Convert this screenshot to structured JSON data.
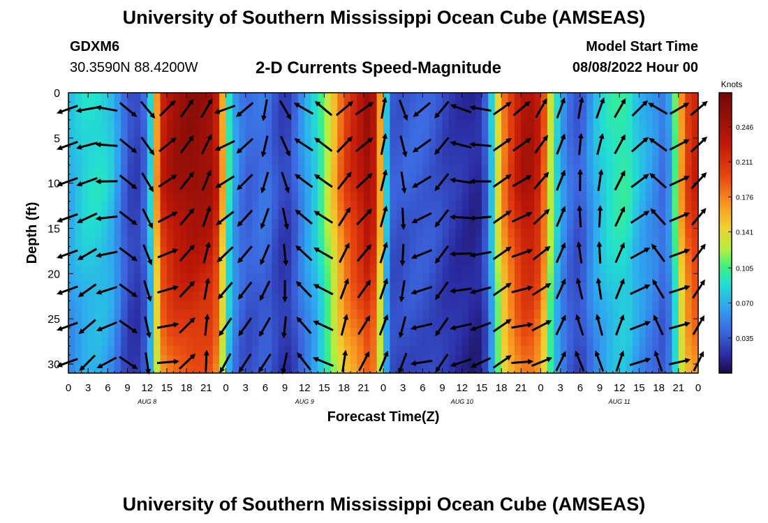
{
  "header": {
    "title_top": "University of Southern Mississippi Ocean Cube (AMSEAS)",
    "title_bottom": "University of Southern Mississippi Ocean Cube (AMSEAS)",
    "station_id": "GDXM6",
    "station_coords": "30.3590N  88.4200W",
    "plot_title": "2-D Currents Speed-Magnitude",
    "model_start_label": "Model Start Time",
    "model_start_value": "08/08/2022 Hour 00"
  },
  "chart_data": {
    "type": "heatmap",
    "title": "2-D Currents Speed-Magnitude",
    "xlabel": "Forecast Time(Z)",
    "ylabel": "Depth (ft)",
    "x_range": [
      0,
      96
    ],
    "ylim": [
      0,
      31
    ],
    "y_inverted": true,
    "x_tick_labels": [
      "0",
      "3",
      "6",
      "9",
      "12",
      "15",
      "18",
      "21",
      "0",
      "3",
      "6",
      "9",
      "12",
      "15",
      "18",
      "21",
      "0",
      "3",
      "6",
      "9",
      "12",
      "15",
      "18",
      "21",
      "0",
      "3",
      "6",
      "9",
      "12",
      "15",
      "18",
      "21",
      "0"
    ],
    "y_ticks": [
      0,
      5,
      10,
      15,
      20,
      25,
      30
    ],
    "day_labels": [
      {
        "label": "AUG 8",
        "hour": 12
      },
      {
        "label": "AUG 9",
        "hour": 36
      },
      {
        "label": "AUG 10",
        "hour": 60
      },
      {
        "label": "AUG 11",
        "hour": 84
      }
    ],
    "colorbar": {
      "label": "Knots",
      "min": 0.0,
      "max": 0.28,
      "ticks": [
        0.035,
        0.07,
        0.105,
        0.141,
        0.176,
        0.211,
        0.246
      ],
      "tick_labels": [
        "0.035",
        "0.070",
        "0.105",
        "0.141",
        "0.176",
        "0.211",
        "0.246"
      ]
    },
    "speed_profile": {
      "description": "approximate speed (knots) vs forecast hour, with depth modifiers",
      "hours": [
        0,
        2,
        3,
        5,
        7,
        8,
        9,
        10,
        11,
        12,
        13,
        14,
        16,
        19,
        22,
        23,
        24,
        25,
        26,
        27,
        29,
        30,
        31,
        32,
        33,
        34,
        35,
        38,
        40,
        42,
        45,
        46,
        47,
        48,
        49,
        50,
        52,
        54,
        56,
        57,
        58,
        60,
        61,
        62,
        63,
        64,
        65,
        66,
        68,
        70,
        72,
        73,
        74,
        75,
        76,
        77,
        78,
        79,
        80,
        82,
        84,
        85,
        86,
        87,
        88,
        89,
        90,
        91,
        92,
        93,
        94,
        96
      ],
      "speeds": [
        0.07,
        0.085,
        0.09,
        0.09,
        0.075,
        0.05,
        0.035,
        0.025,
        0.03,
        0.05,
        0.12,
        0.22,
        0.25,
        0.26,
        0.25,
        0.21,
        0.12,
        0.07,
        0.055,
        0.04,
        0.045,
        0.05,
        0.04,
        0.03,
        0.025,
        0.03,
        0.05,
        0.09,
        0.14,
        0.2,
        0.24,
        0.26,
        0.21,
        0.12,
        0.04,
        0.035,
        0.04,
        0.04,
        0.035,
        0.03,
        0.025,
        0.02,
        0.018,
        0.015,
        0.02,
        0.05,
        0.11,
        0.17,
        0.22,
        0.25,
        0.22,
        0.16,
        0.1,
        0.07,
        0.05,
        0.04,
        0.035,
        0.05,
        0.07,
        0.09,
        0.1,
        0.1,
        0.09,
        0.075,
        0.07,
        0.06,
        0.055,
        0.04,
        0.08,
        0.14,
        0.2,
        0.23
      ]
    },
    "vector_grid": {
      "hours": [
        0,
        3,
        6,
        9,
        12,
        15,
        18,
        21,
        24,
        27,
        30,
        33,
        36,
        39,
        42,
        45,
        48,
        51,
        54,
        57,
        60,
        63,
        66,
        69,
        72,
        75,
        78,
        81,
        84,
        87,
        90,
        93,
        96
      ],
      "depths": [
        0,
        4,
        8,
        12,
        16,
        20,
        24,
        28
      ],
      "direction_pattern_deg": [
        200,
        190,
        170,
        320,
        310,
        45,
        55,
        60,
        200,
        220,
        260,
        300,
        150,
        140,
        40,
        35,
        80,
        290,
        220,
        230,
        160,
        170,
        35,
        40,
        60,
        70,
        80,
        70,
        60,
        45,
        150,
        30,
        40
      ]
    }
  }
}
